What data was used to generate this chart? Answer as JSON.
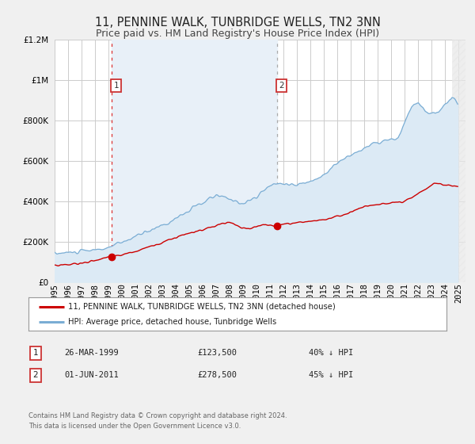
{
  "title": "11, PENNINE WALK, TUNBRIDGE WELLS, TN2 3NN",
  "subtitle": "Price paid vs. HM Land Registry's House Price Index (HPI)",
  "ylim": [
    0,
    1200000
  ],
  "xlim_start": 1995.0,
  "xlim_end": 2025.5,
  "yticks": [
    0,
    200000,
    400000,
    600000,
    800000,
    1000000,
    1200000
  ],
  "background_color": "#f0f0f0",
  "plot_bg_color": "#ffffff",
  "grid_color": "#cccccc",
  "red_line_color": "#cc0000",
  "blue_line_color": "#7aadd4",
  "blue_fill_color": "#dceaf5",
  "shade_color": "#e8f0f8",
  "marker1_date": 1999.23,
  "marker1_red_value": 123500,
  "marker2_date": 2011.5,
  "marker2_red_value": 278500,
  "vline1_color": "#dd3333",
  "vline2_color": "#aaaaaa",
  "legend_entry1": "11, PENNINE WALK, TUNBRIDGE WELLS, TN2 3NN (detached house)",
  "legend_entry2": "HPI: Average price, detached house, Tunbridge Wells",
  "table_row1": [
    "1",
    "26-MAR-1999",
    "£123,500",
    "40% ↓ HPI"
  ],
  "table_row2": [
    "2",
    "01-JUN-2011",
    "£278,500",
    "45% ↓ HPI"
  ],
  "footer_line1": "Contains HM Land Registry data © Crown copyright and database right 2024.",
  "footer_line2": "This data is licensed under the Open Government Licence v3.0.",
  "title_fontsize": 10.5,
  "subtitle_fontsize": 9,
  "tick_fontsize": 7.5,
  "hatch_start": 2024.5
}
